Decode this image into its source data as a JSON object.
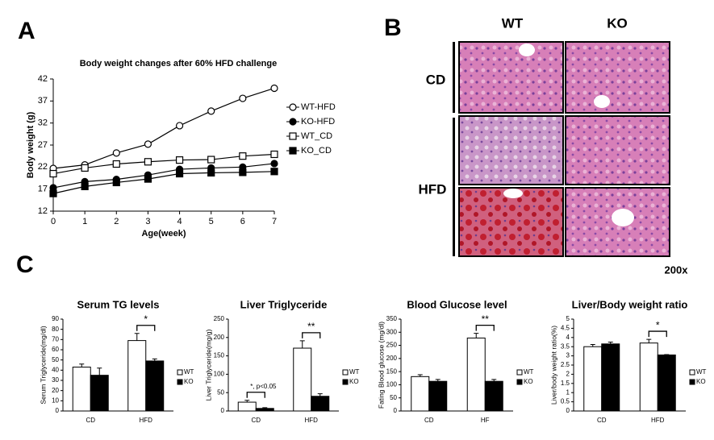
{
  "panels": {
    "a": "A",
    "b": "B",
    "c": "C"
  },
  "histology": {
    "columns": [
      "WT",
      "KO"
    ],
    "rows": [
      "CD",
      "HFD"
    ],
    "magnification": "200x"
  },
  "chart_data": [
    {
      "type": "line",
      "title": "Body weight changes after 60% HFD challenge",
      "x_label": "Age(week)",
      "y_label": "Body weight (g)",
      "x": [
        0,
        1,
        2,
        3,
        4,
        5,
        6,
        7
      ],
      "xlim": [
        0,
        7
      ],
      "xticks": [
        0,
        1,
        2,
        3,
        4,
        5,
        6,
        7
      ],
      "ylim": [
        12,
        42
      ],
      "yticks": [
        12,
        17,
        22,
        27,
        32,
        37,
        42
      ],
      "series": [
        {
          "name": "WT-HFD",
          "color": "#000000",
          "marker": "circle",
          "fill": "#ffffff",
          "values": [
            21.7,
            22.5,
            25.2,
            27.2,
            31.4,
            34.7,
            37.6,
            39.9
          ]
        },
        {
          "name": "KO-HFD",
          "color": "#000000",
          "marker": "circle",
          "fill": "#000000",
          "values": [
            17.3,
            18.7,
            19.2,
            20.2,
            21.5,
            21.8,
            22.0,
            22.8
          ]
        },
        {
          "name": "WT_CD",
          "color": "#000000",
          "marker": "square",
          "fill": "#ffffff",
          "values": [
            20.5,
            21.8,
            22.7,
            23.2,
            23.6,
            23.7,
            24.5,
            24.9
          ]
        },
        {
          "name": "KO_CD",
          "color": "#000000",
          "marker": "square",
          "fill": "#000000",
          "values": [
            16.0,
            17.6,
            18.5,
            19.3,
            20.5,
            20.7,
            20.8,
            21.0
          ]
        }
      ]
    },
    {
      "type": "bar",
      "title": "Serum TG levels",
      "y_label": "Serum Triglyceride(mg/dl)",
      "categories": [
        "CD",
        "HFD"
      ],
      "ylim": [
        0,
        90
      ],
      "yticks": [
        0,
        10,
        20,
        30,
        40,
        50,
        60,
        70,
        80,
        90
      ],
      "series": [
        {
          "name": "WT",
          "color": "#ffffff",
          "values": [
            43,
            69
          ],
          "errors": [
            3,
            7
          ]
        },
        {
          "name": "KO",
          "color": "#000000",
          "values": [
            35,
            49
          ],
          "errors": [
            7,
            2
          ]
        }
      ],
      "annotations": [
        {
          "label": "*",
          "category": "HFD"
        }
      ]
    },
    {
      "type": "bar",
      "title": "Liver Triglyceride",
      "y_label": "Liver Triglyceride(mg/g)",
      "categories": [
        "CD",
        "HFD"
      ],
      "ylim": [
        0,
        250
      ],
      "yticks": [
        0,
        50,
        100,
        150,
        200,
        250
      ],
      "series": [
        {
          "name": "WT",
          "color": "#ffffff",
          "values": [
            24,
            171
          ],
          "errors": [
            5,
            20
          ]
        },
        {
          "name": "KO",
          "color": "#000000",
          "values": [
            7,
            40
          ],
          "errors": [
            2,
            7
          ]
        }
      ],
      "annotations": [
        {
          "label": "*, p<0.05",
          "category": "CD"
        },
        {
          "label": "**",
          "category": "HFD"
        }
      ]
    },
    {
      "type": "bar",
      "title": "Blood Glucose level",
      "y_label": "Fating Blood glucose (mg/dl)",
      "categories": [
        "CD",
        "HF"
      ],
      "ylim": [
        0,
        350
      ],
      "yticks": [
        0,
        50,
        100,
        150,
        200,
        250,
        300,
        350
      ],
      "series": [
        {
          "name": "WT",
          "color": "#ffffff",
          "values": [
            131,
            278
          ],
          "errors": [
            7,
            18
          ]
        },
        {
          "name": "KO",
          "color": "#000000",
          "values": [
            113,
            113
          ],
          "errors": [
            7,
            7
          ]
        }
      ],
      "annotations": [
        {
          "label": "**",
          "category": "HF"
        }
      ]
    },
    {
      "type": "bar",
      "title": "Liver/Body weight ratio",
      "y_label": "Liver/body weight ratio(%)",
      "categories": [
        "CD",
        "HFD"
      ],
      "ylim": [
        0,
        5
      ],
      "yticks": [
        0,
        0.5,
        1,
        1.5,
        2,
        2.5,
        3,
        3.5,
        4,
        4.5,
        5
      ],
      "series": [
        {
          "name": "WT",
          "color": "#ffffff",
          "values": [
            3.5,
            3.7
          ],
          "errors": [
            0.12,
            0.2
          ]
        },
        {
          "name": "KO",
          "color": "#000000",
          "values": [
            3.65,
            3.05
          ],
          "errors": [
            0.1,
            0.02
          ]
        }
      ],
      "annotations": [
        {
          "label": "*",
          "category": "HFD"
        }
      ]
    }
  ]
}
